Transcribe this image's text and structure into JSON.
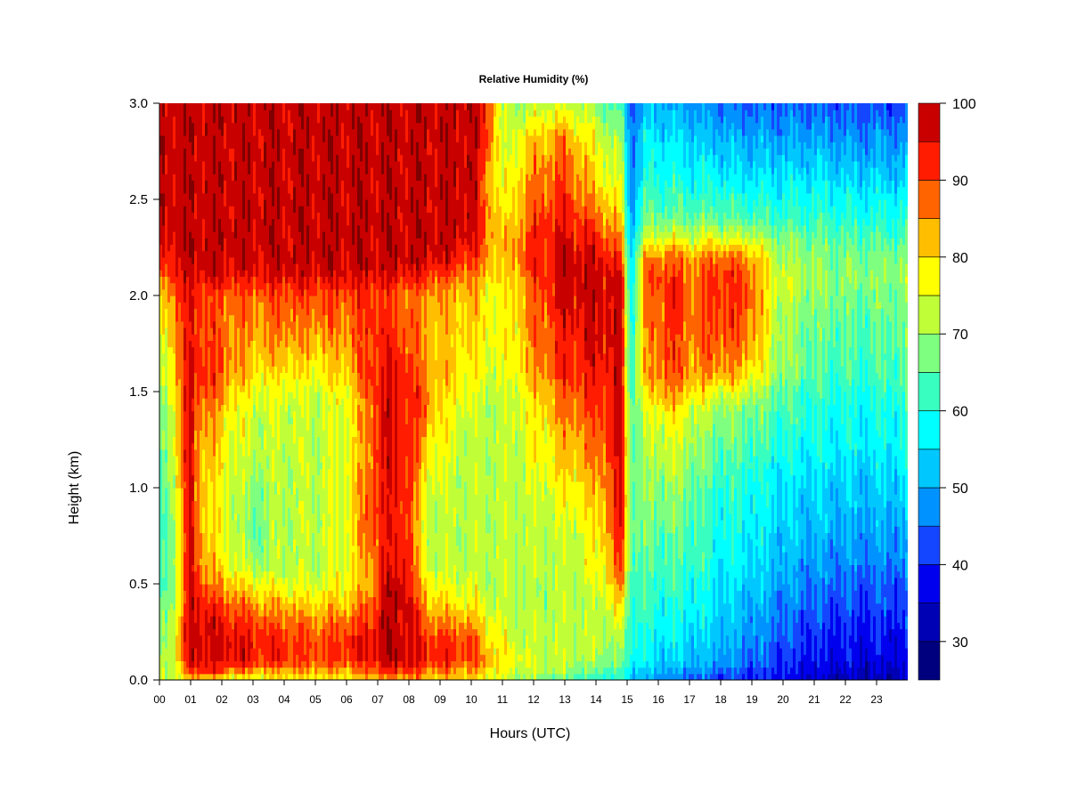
{
  "chart_data": {
    "type": "heatmap",
    "title": "Relative Humidity (%)",
    "xlabel": "Hours (UTC)",
    "ylabel": "Height (km)",
    "xlim": [
      0,
      24
    ],
    "ylim": [
      0.0,
      3.0
    ],
    "x_ticks": [
      "00",
      "01",
      "02",
      "03",
      "04",
      "05",
      "06",
      "07",
      "08",
      "09",
      "10",
      "11",
      "12",
      "13",
      "14",
      "15",
      "16",
      "17",
      "18",
      "19",
      "20",
      "21",
      "22",
      "23"
    ],
    "y_ticks": [
      "0.0",
      "0.5",
      "1.0",
      "1.5",
      "2.0",
      "2.5",
      "3.0"
    ],
    "colorbar": {
      "range": [
        25,
        100
      ],
      "levels": [
        25,
        30,
        35,
        40,
        45,
        50,
        55,
        60,
        65,
        70,
        75,
        80,
        85,
        90,
        95,
        100
      ],
      "tick_labels": [
        "30",
        "40",
        "50",
        "60",
        "70",
        "80",
        "90",
        "100"
      ],
      "colors": [
        "#00007f",
        "#0000b5",
        "#0000ef",
        "#1446ff",
        "#0092ff",
        "#00c8ff",
        "#00ffff",
        "#38ffc0",
        "#7fff7f",
        "#c0ff38",
        "#ffff00",
        "#ffbf00",
        "#ff6400",
        "#ff1c00",
        "#c80000",
        "#7f0000"
      ]
    },
    "heights_km": [
      0.0,
      0.05,
      0.1,
      0.2,
      0.3,
      0.4,
      0.5,
      0.6,
      0.8,
      1.0,
      1.2,
      1.4,
      1.5,
      1.6,
      1.8,
      2.0,
      2.1,
      2.2,
      2.3,
      2.4,
      2.6,
      2.8,
      3.0
    ],
    "rh_profiles": [
      {
        "hour": 0.0,
        "rh": [
          72,
          70,
          68,
          66,
          64,
          62,
          60,
          60,
          58,
          60,
          62,
          64,
          66,
          68,
          72,
          78,
          84,
          90,
          95,
          97,
          98,
          98,
          98
        ]
      },
      {
        "hour": 0.5,
        "rh": [
          74,
          74,
          76,
          78,
          76,
          74,
          72,
          72,
          74,
          76,
          78,
          80,
          82,
          84,
          86,
          90,
          94,
          97,
          98,
          98,
          98,
          98,
          98
        ]
      },
      {
        "hour": 1.0,
        "rh": [
          80,
          90,
          96,
          97,
          98,
          97,
          96,
          96,
          96,
          96,
          96,
          96,
          96,
          96,
          94,
          93,
          96,
          98,
          98,
          98,
          98,
          98,
          98
        ]
      },
      {
        "hour": 1.2,
        "rh": [
          82,
          92,
          97,
          98,
          98,
          96,
          94,
          90,
          88,
          86,
          86,
          88,
          92,
          94,
          93,
          92,
          96,
          98,
          98,
          98,
          98,
          98,
          98
        ]
      },
      {
        "hour": 1.6,
        "rh": [
          80,
          92,
          96,
          96,
          96,
          92,
          86,
          82,
          80,
          80,
          82,
          86,
          90,
          92,
          90,
          90,
          96,
          98,
          98,
          98,
          98,
          98,
          98
        ]
      },
      {
        "hour": 2.3,
        "rh": [
          74,
          88,
          96,
          96,
          93,
          88,
          82,
          76,
          74,
          74,
          76,
          78,
          82,
          86,
          86,
          88,
          95,
          98,
          98,
          98,
          98,
          98,
          98
        ]
      },
      {
        "hour": 3.0,
        "rh": [
          74,
          84,
          94,
          94,
          90,
          84,
          78,
          70,
          66,
          68,
          72,
          74,
          76,
          80,
          84,
          88,
          94,
          98,
          98,
          98,
          98,
          98,
          98
        ]
      },
      {
        "hour": 4.0,
        "rh": [
          78,
          84,
          92,
          92,
          88,
          82,
          76,
          72,
          72,
          72,
          74,
          74,
          76,
          80,
          86,
          90,
          96,
          98,
          98,
          98,
          98,
          98,
          98
        ]
      },
      {
        "hour": 5.0,
        "rh": [
          78,
          84,
          90,
          90,
          86,
          80,
          74,
          72,
          72,
          72,
          72,
          72,
          74,
          78,
          84,
          90,
          96,
          98,
          98,
          98,
          98,
          98,
          98
        ]
      },
      {
        "hour": 6.0,
        "rh": [
          78,
          84,
          92,
          92,
          88,
          82,
          78,
          76,
          76,
          76,
          76,
          76,
          78,
          82,
          86,
          90,
          96,
          98,
          98,
          98,
          98,
          98,
          98
        ]
      },
      {
        "hour": 6.8,
        "rh": [
          82,
          88,
          94,
          96,
          92,
          88,
          84,
          86,
          90,
          90,
          88,
          88,
          90,
          92,
          92,
          92,
          96,
          98,
          98,
          98,
          98,
          98,
          98
        ]
      },
      {
        "hour": 7.2,
        "rh": [
          84,
          92,
          98,
          98,
          98,
          98,
          96,
          94,
          92,
          94,
          96,
          96,
          96,
          94,
          92,
          90,
          96,
          98,
          98,
          98,
          98,
          98,
          98
        ]
      },
      {
        "hour": 7.9,
        "rh": [
          84,
          92,
          98,
          98,
          98,
          98,
          97,
          95,
          94,
          94,
          94,
          94,
          94,
          92,
          90,
          88,
          94,
          98,
          98,
          98,
          98,
          98,
          98
        ]
      },
      {
        "hour": 8.5,
        "rh": [
          82,
          88,
          94,
          92,
          88,
          84,
          80,
          76,
          74,
          76,
          82,
          88,
          88,
          86,
          84,
          86,
          92,
          98,
          98,
          98,
          98,
          98,
          98
        ]
      },
      {
        "hour": 9.0,
        "rh": [
          82,
          86,
          92,
          92,
          86,
          80,
          76,
          72,
          72,
          74,
          76,
          78,
          80,
          82,
          82,
          84,
          90,
          96,
          98,
          98,
          98,
          98,
          98
        ]
      },
      {
        "hour": 10.0,
        "rh": [
          80,
          84,
          90,
          90,
          84,
          78,
          74,
          72,
          72,
          72,
          72,
          74,
          76,
          78,
          80,
          82,
          86,
          92,
          96,
          98,
          98,
          98,
          98
        ]
      },
      {
        "hour": 10.5,
        "rh": [
          76,
          80,
          84,
          82,
          78,
          74,
          72,
          72,
          72,
          72,
          72,
          72,
          74,
          76,
          78,
          78,
          82,
          86,
          88,
          88,
          86,
          92,
          94
        ]
      },
      {
        "hour": 11.0,
        "rh": [
          72,
          76,
          78,
          76,
          74,
          72,
          72,
          72,
          72,
          72,
          72,
          72,
          72,
          74,
          76,
          76,
          78,
          80,
          80,
          78,
          74,
          72,
          70
        ]
      },
      {
        "hour": 12.0,
        "rh": [
          68,
          72,
          74,
          72,
          72,
          70,
          70,
          72,
          72,
          74,
          76,
          78,
          80,
          84,
          86,
          88,
          90,
          92,
          92,
          90,
          86,
          82,
          72
        ]
      },
      {
        "hour": 13.0,
        "rh": [
          64,
          70,
          72,
          72,
          72,
          72,
          72,
          72,
          74,
          78,
          82,
          86,
          88,
          92,
          94,
          96,
          97,
          97,
          96,
          94,
          90,
          86,
          74
        ]
      },
      {
        "hour": 14.0,
        "rh": [
          62,
          66,
          70,
          72,
          72,
          72,
          74,
          76,
          78,
          82,
          86,
          90,
          92,
          94,
          96,
          97,
          97,
          96,
          92,
          88,
          80,
          76,
          68
        ]
      },
      {
        "hour": 14.8,
        "rh": [
          58,
          62,
          66,
          70,
          74,
          80,
          86,
          90,
          94,
          96,
          96,
          96,
          96,
          96,
          96,
          96,
          95,
          92,
          86,
          80,
          74,
          70,
          62
        ]
      },
      {
        "hour": 15.1,
        "rh": [
          54,
          58,
          60,
          62,
          62,
          64,
          64,
          66,
          68,
          68,
          68,
          66,
          64,
          62,
          60,
          58,
          56,
          54,
          52,
          50,
          48,
          46,
          44
        ]
      },
      {
        "hour": 15.6,
        "rh": [
          48,
          52,
          56,
          58,
          60,
          62,
          62,
          64,
          66,
          68,
          70,
          74,
          78,
          82,
          84,
          86,
          88,
          84,
          74,
          66,
          60,
          56,
          52
        ]
      },
      {
        "hour": 16.3,
        "rh": [
          46,
          50,
          54,
          56,
          58,
          60,
          62,
          64,
          66,
          70,
          74,
          80,
          86,
          90,
          92,
          92,
          92,
          88,
          76,
          66,
          60,
          56,
          50
        ]
      },
      {
        "hour": 17.2,
        "rh": [
          44,
          48,
          52,
          54,
          56,
          58,
          60,
          62,
          64,
          66,
          70,
          74,
          80,
          84,
          86,
          88,
          86,
          84,
          74,
          66,
          58,
          54,
          48
        ]
      },
      {
        "hour": 17.8,
        "rh": [
          42,
          46,
          50,
          52,
          54,
          56,
          56,
          58,
          60,
          62,
          66,
          70,
          76,
          86,
          90,
          92,
          92,
          88,
          76,
          66,
          58,
          52,
          46
        ]
      },
      {
        "hour": 18.8,
        "rh": [
          40,
          42,
          46,
          48,
          50,
          52,
          54,
          56,
          58,
          60,
          64,
          68,
          74,
          82,
          88,
          90,
          90,
          86,
          74,
          64,
          56,
          50,
          44
        ]
      },
      {
        "hour": 19.8,
        "rh": [
          38,
          40,
          42,
          44,
          46,
          48,
          50,
          52,
          54,
          56,
          60,
          64,
          66,
          70,
          72,
          74,
          74,
          72,
          68,
          62,
          56,
          50,
          44
        ]
      },
      {
        "hour": 21.0,
        "rh": [
          34,
          36,
          38,
          40,
          42,
          44,
          46,
          48,
          52,
          54,
          58,
          60,
          62,
          64,
          66,
          68,
          70,
          68,
          66,
          62,
          56,
          50,
          44
        ]
      },
      {
        "hour": 22.5,
        "rh": [
          32,
          34,
          36,
          38,
          40,
          42,
          44,
          46,
          50,
          52,
          56,
          58,
          60,
          62,
          64,
          66,
          68,
          66,
          64,
          60,
          54,
          48,
          42
        ]
      },
      {
        "hour": 23.9,
        "rh": [
          32,
          34,
          36,
          38,
          40,
          42,
          44,
          46,
          50,
          54,
          58,
          60,
          62,
          64,
          66,
          68,
          70,
          68,
          64,
          60,
          54,
          48,
          42
        ]
      }
    ]
  }
}
